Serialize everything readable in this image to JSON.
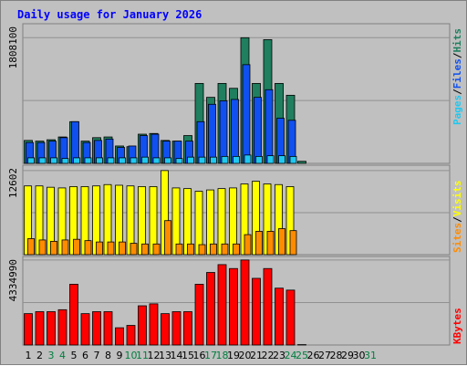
{
  "chart_data": {
    "type": "bar",
    "title": "Daily usage for January 2026",
    "colors": {
      "hits": "#1f7f5f",
      "files": "#1050f0",
      "pages": "#20c8f0",
      "visits": "#ffff00",
      "sites": "#ff8c00",
      "kbytes": "#ff0000",
      "weekend_day": "#007f3f",
      "weekday_day": "#000000"
    },
    "categories": [
      "1",
      "2",
      "3",
      "4",
      "5",
      "6",
      "7",
      "8",
      "9",
      "10",
      "11",
      "12",
      "13",
      "14",
      "15",
      "16",
      "17",
      "18",
      "19",
      "20",
      "21",
      "22",
      "23",
      "24",
      "25",
      "26",
      "27",
      "28",
      "29",
      "30",
      "31"
    ],
    "weekend_days": [
      "3",
      "4",
      "10",
      "11",
      "17",
      "18",
      "24",
      "25",
      "31"
    ],
    "panels": [
      {
        "name": "hits-files-pages",
        "ylim": [
          0,
          1808100
        ],
        "ytick": "1808100",
        "legend": [
          {
            "key": "pages",
            "label": "Pages"
          },
          {
            "sep": "/"
          },
          {
            "key": "files",
            "label": "Files"
          },
          {
            "sep": "/"
          },
          {
            "key": "hits",
            "label": "Hits"
          }
        ],
        "series": [
          {
            "name": "Hits",
            "key": "hits",
            "values": [
              330000,
              320000,
              340000,
              380000,
              600000,
              320000,
              370000,
              380000,
              250000,
              240000,
              420000,
              430000,
              330000,
              320000,
              400000,
              1150000,
              950000,
              1150000,
              1080000,
              1808100,
              1150000,
              1780000,
              1150000,
              980000,
              30000,
              0,
              0,
              0,
              0,
              0,
              0
            ]
          },
          {
            "name": "Files",
            "key": "files",
            "values": [
              300000,
              300000,
              320000,
              370000,
              600000,
              300000,
              330000,
              350000,
              230000,
              250000,
              400000,
              420000,
              320000,
              320000,
              320000,
              600000,
              850000,
              900000,
              920000,
              1420000,
              950000,
              1060000,
              650000,
              620000,
              0,
              0,
              0,
              0,
              0,
              0,
              0
            ]
          },
          {
            "name": "Pages",
            "key": "pages",
            "values": [
              80000,
              80000,
              80000,
              70000,
              80000,
              80000,
              80000,
              80000,
              80000,
              80000,
              90000,
              80000,
              80000,
              70000,
              90000,
              90000,
              90000,
              100000,
              100000,
              120000,
              100000,
              110000,
              110000,
              100000,
              0,
              0,
              0,
              0,
              0,
              0,
              0
            ]
          }
        ]
      },
      {
        "name": "visits-sites",
        "ylim": [
          0,
          12602
        ],
        "ytick": "12602",
        "legend": [
          {
            "key": "sites",
            "label": "Sites"
          },
          {
            "sep": "/"
          },
          {
            "key": "visits",
            "label": "Visits"
          }
        ],
        "series": [
          {
            "name": "Visits",
            "key": "visits",
            "values": [
              10300,
              10300,
              10100,
              10000,
              10200,
              10200,
              10300,
              10500,
              10400,
              10300,
              10200,
              10200,
              12602,
              10000,
              9900,
              9500,
              9700,
              9900,
              10000,
              10600,
              11000,
              10600,
              10500,
              10200,
              0,
              0,
              0,
              0,
              0,
              0,
              0
            ]
          },
          {
            "name": "Sites",
            "key": "sites",
            "values": [
              2400,
              2200,
              2000,
              2200,
              2300,
              2100,
              1900,
              1900,
              1900,
              1700,
              1600,
              1600,
              5100,
              1600,
              1600,
              1500,
              1600,
              1600,
              1600,
              3000,
              3500,
              3500,
              3900,
              3600,
              0,
              0,
              0,
              0,
              0,
              0,
              0
            ]
          }
        ]
      },
      {
        "name": "kbytes",
        "ylim": [
          0,
          4334990
        ],
        "ytick": "4334990",
        "legend": [
          {
            "key": "kbytes",
            "label": "KBytes"
          }
        ],
        "series": [
          {
            "name": "KBytes",
            "key": "kbytes",
            "values": [
              1600000,
              1700000,
              1700000,
              1800000,
              3100000,
              1600000,
              1700000,
              1700000,
              880000,
              1000000,
              2000000,
              2100000,
              1600000,
              1700000,
              1700000,
              3100000,
              3700000,
              4100000,
              3900000,
              4334990,
              3400000,
              3900000,
              2900000,
              2800000,
              20000,
              0,
              0,
              0,
              0,
              0,
              0
            ]
          }
        ]
      }
    ]
  }
}
